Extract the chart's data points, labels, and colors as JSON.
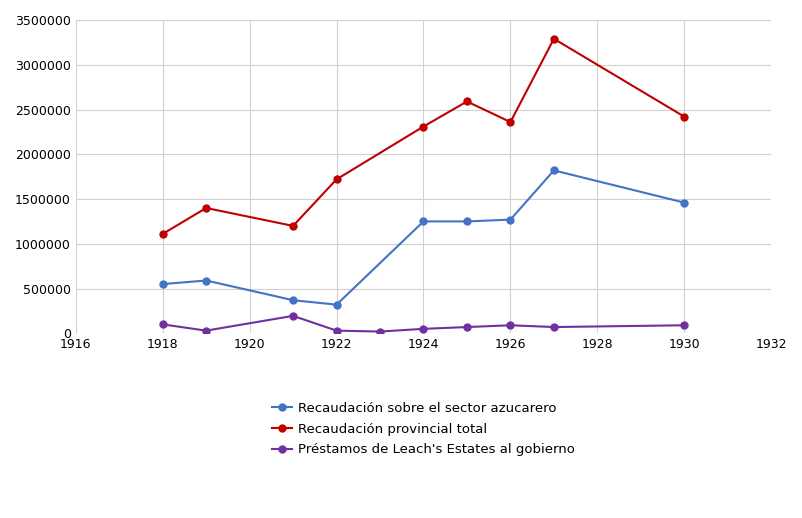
{
  "years_azucarero": [
    1918,
    1919,
    1921,
    1922,
    1924,
    1925,
    1926,
    1927,
    1930
  ],
  "values_azucarero": [
    550000,
    590000,
    370000,
    320000,
    1250000,
    1250000,
    1270000,
    1820000,
    1460000
  ],
  "years_provincial": [
    1918,
    1919,
    1921,
    1922,
    1924,
    1925,
    1926,
    1927,
    1930
  ],
  "values_provincial": [
    1110000,
    1400000,
    1200000,
    1720000,
    2310000,
    2590000,
    2360000,
    3290000,
    2420000
  ],
  "years_prestamos": [
    1918,
    1919,
    1921,
    1922,
    1923,
    1924,
    1925,
    1926,
    1927,
    1930
  ],
  "values_prestamos": [
    100000,
    30000,
    195000,
    30000,
    20000,
    50000,
    70000,
    90000,
    70000,
    90000
  ],
  "color_azucarero": "#4472C4",
  "color_provincial": "#C00000",
  "color_prestamos": "#7030A0",
  "legend_azucarero": "Recaudación sobre el sector azucarero",
  "legend_provincial": "Recaudación provincial total",
  "legend_prestamos": "Préstamos de Leach's Estates al gobierno",
  "xlim": [
    1916,
    1932
  ],
  "ylim": [
    0,
    3500000
  ],
  "yticks": [
    0,
    500000,
    1000000,
    1500000,
    2000000,
    2500000,
    3000000,
    3500000
  ],
  "xticks": [
    1916,
    1918,
    1920,
    1922,
    1924,
    1926,
    1928,
    1930,
    1932
  ],
  "background_color": "#ffffff",
  "grid_color": "#d0d0d0"
}
